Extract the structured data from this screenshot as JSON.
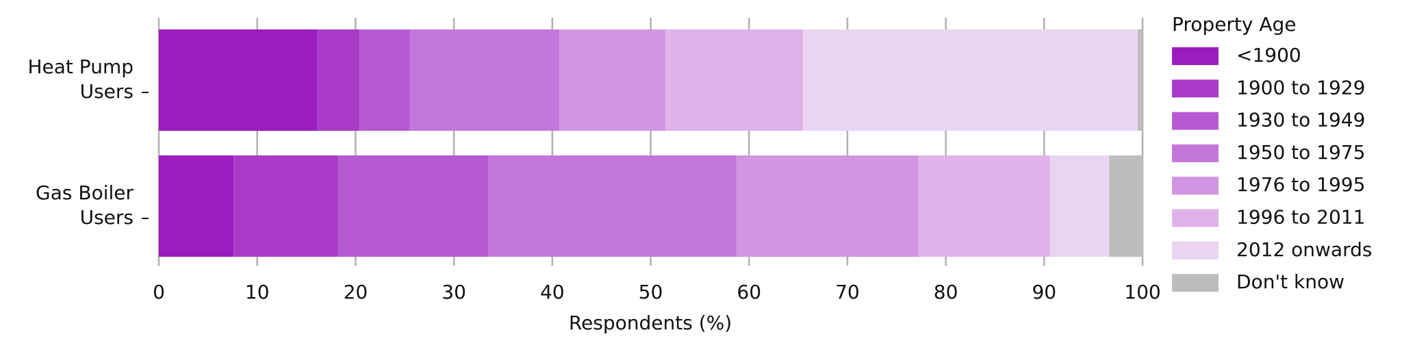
{
  "chart_data": {
    "type": "bar",
    "orientation": "horizontal",
    "stacked": true,
    "x_label": "Respondents (%)",
    "categories": [
      "Heat Pump Users",
      "Gas Boiler Users"
    ],
    "legend_title": "Property Age",
    "series": [
      {
        "name": "<1900",
        "color": "#9b1cbf",
        "values": [
          16.1,
          7.6
        ]
      },
      {
        "name": "1900 to 1929",
        "color": "#a93bc8",
        "values": [
          4.3,
          10.6
        ]
      },
      {
        "name": "1930 to 1949",
        "color": "#b65ad2",
        "values": [
          5.1,
          15.3
        ]
      },
      {
        "name": "1950 to 1975",
        "color": "#c477da",
        "values": [
          15.2,
          25.2
        ]
      },
      {
        "name": "1976 to 1995",
        "color": "#d195e1",
        "values": [
          10.8,
          18.5
        ]
      },
      {
        "name": "1996 to 2011",
        "color": "#dfb3e9",
        "values": [
          14.0,
          13.4
        ]
      },
      {
        "name": "2012 onwards",
        "color": "#ebd4f2",
        "values": [
          34.0,
          6.0
        ]
      },
      {
        "name": "Don't know",
        "color": "#bdbdbd",
        "values": [
          0.5,
          3.4
        ]
      }
    ],
    "xlim": [
      0,
      100
    ],
    "xticks": [
      0,
      10,
      20,
      30,
      40,
      50,
      60,
      70,
      80,
      90,
      100
    ],
    "grid": true,
    "legend": "right"
  }
}
